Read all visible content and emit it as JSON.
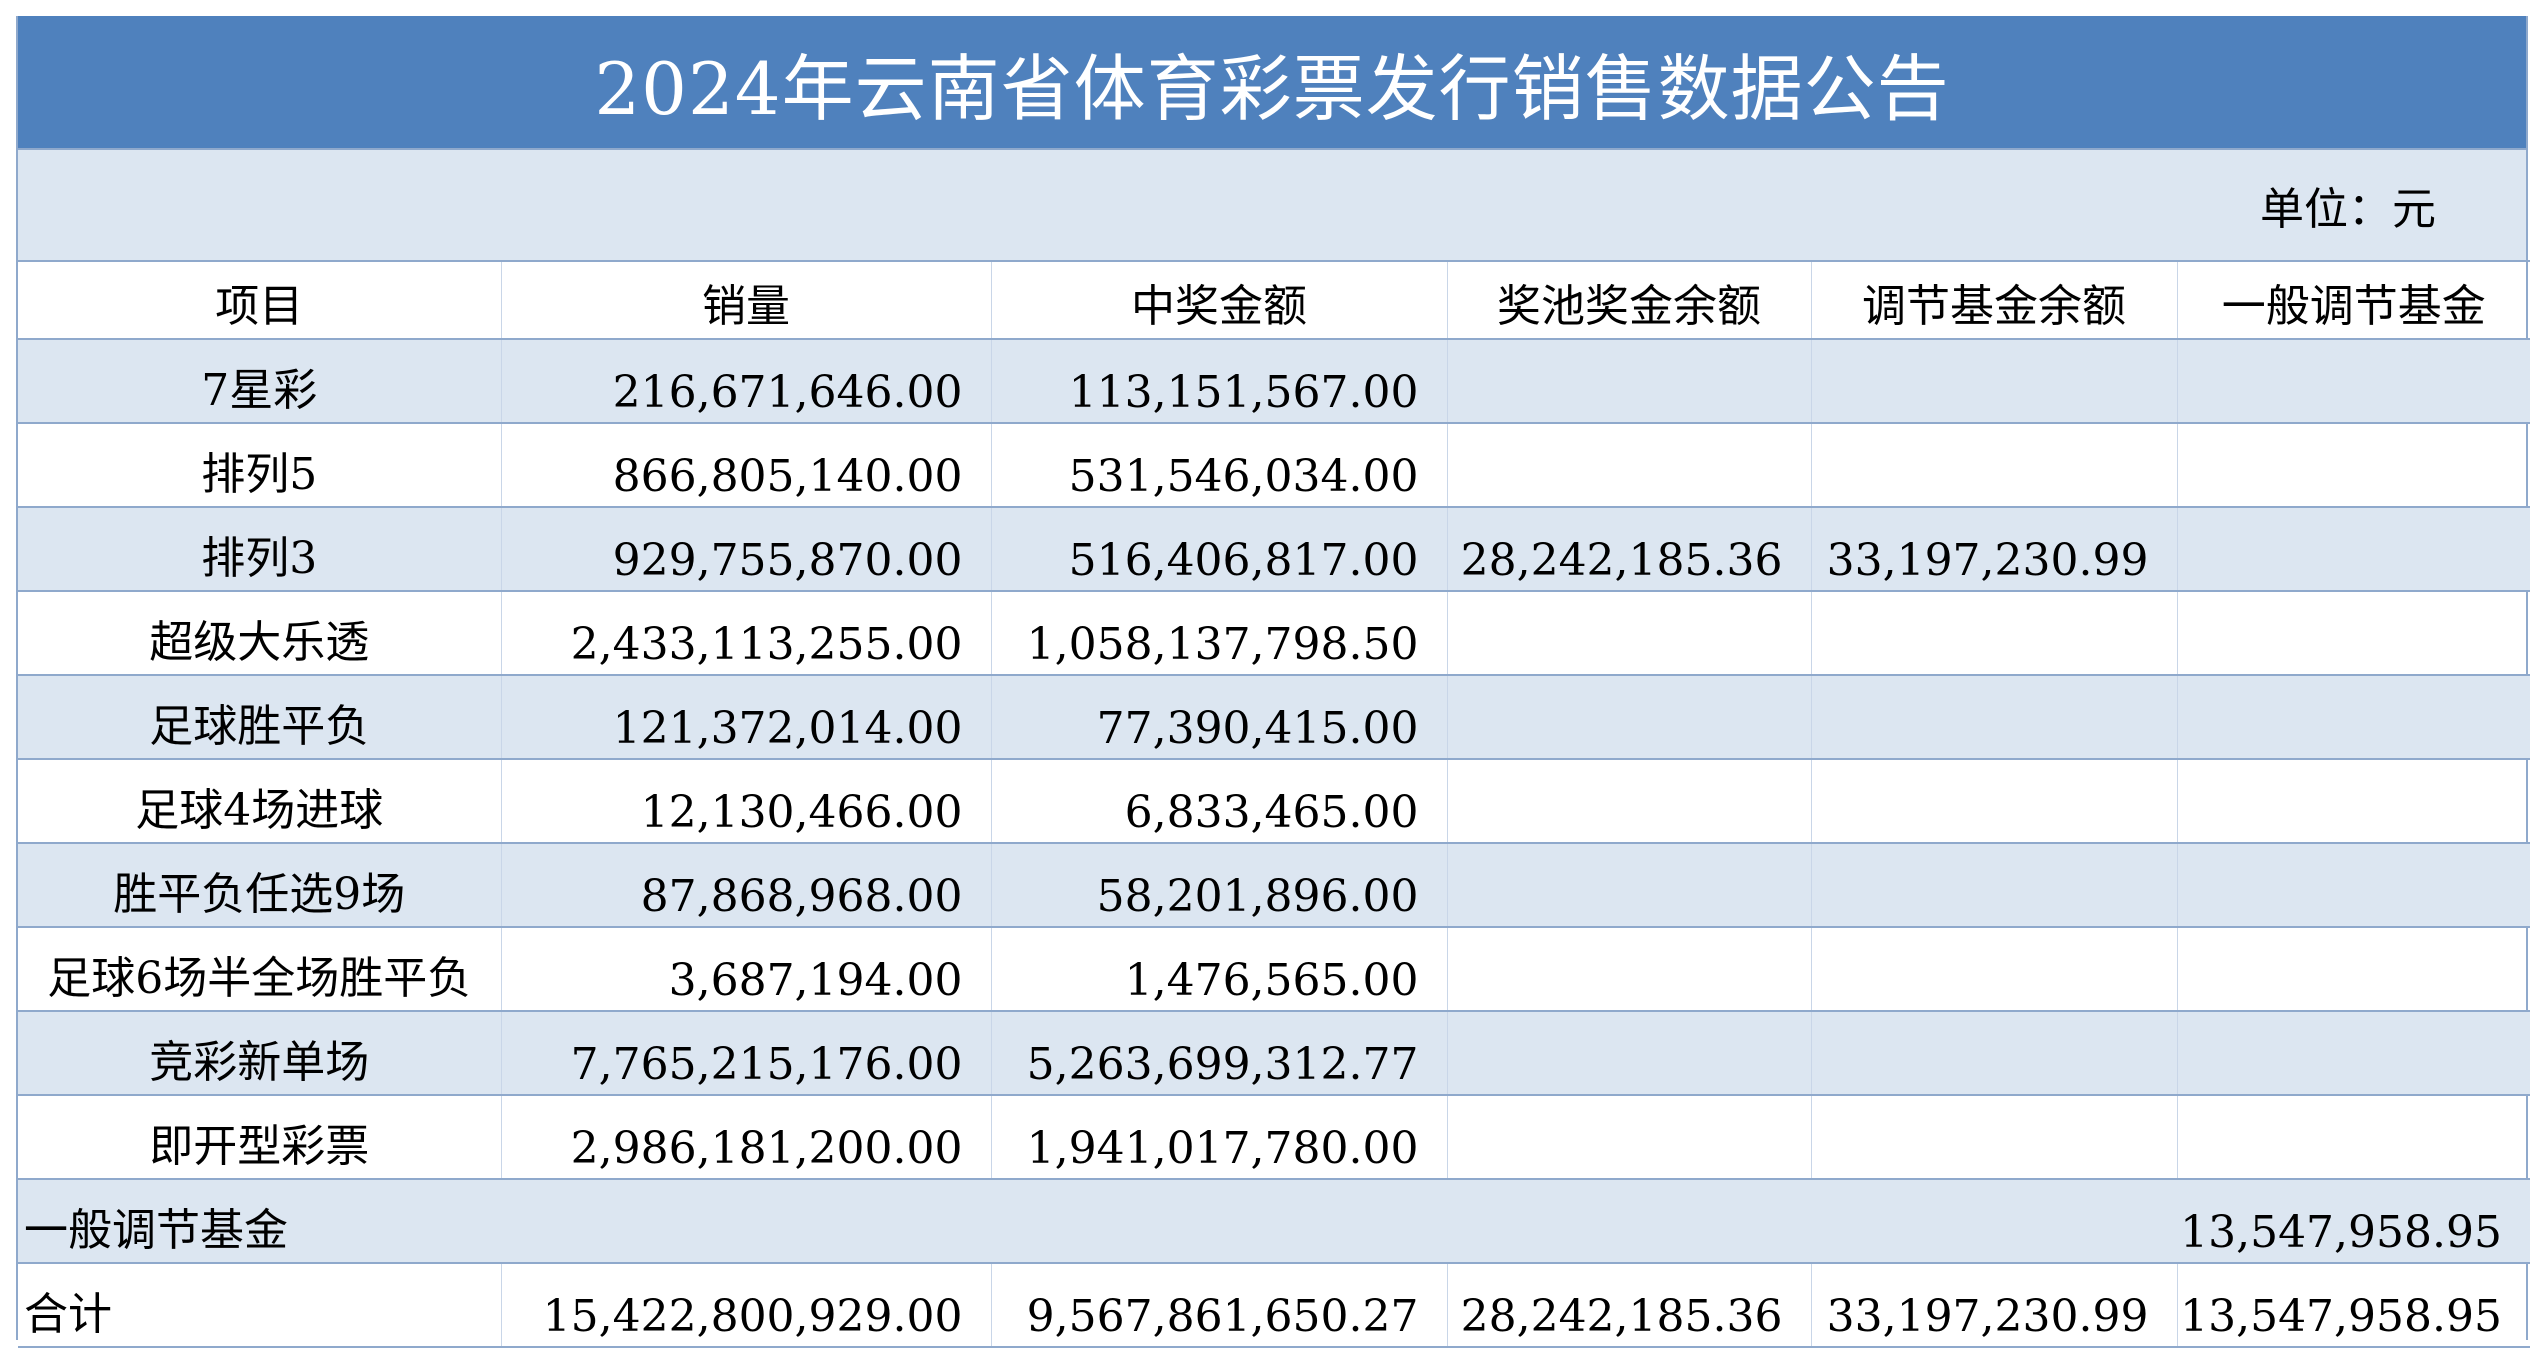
{
  "title": "2024年云南省体育彩票发行销售数据公告",
  "unit_label": "单位：元",
  "columns": [
    "项目",
    "销量",
    "中奖金额",
    "奖池奖金余额",
    "调节基金余额",
    "一般调节基金"
  ],
  "rows": [
    {
      "name": "7星彩",
      "sales": "216,671,646.00",
      "prize": "113,151,567.00",
      "pool": "",
      "adjust": "",
      "general": ""
    },
    {
      "name": "排列5",
      "sales": "866,805,140.00",
      "prize": "531,546,034.00",
      "pool": "",
      "adjust": "",
      "general": ""
    },
    {
      "name": "排列3",
      "sales": "929,755,870.00",
      "prize": "516,406,817.00",
      "pool": "28,242,185.36",
      "adjust": "33,197,230.99",
      "general": ""
    },
    {
      "name": "超级大乐透",
      "sales": "2,433,113,255.00",
      "prize": "1,058,137,798.50",
      "pool": "",
      "adjust": "",
      "general": ""
    },
    {
      "name": "足球胜平负",
      "sales": "121,372,014.00",
      "prize": "77,390,415.00",
      "pool": "",
      "adjust": "",
      "general": ""
    },
    {
      "name": "足球4场进球",
      "sales": "12,130,466.00",
      "prize": "6,833,465.00",
      "pool": "",
      "adjust": "",
      "general": ""
    },
    {
      "name": "胜平负任选9场",
      "sales": "87,868,968.00",
      "prize": "58,201,896.00",
      "pool": "",
      "adjust": "",
      "general": ""
    },
    {
      "name": "足球6场半全场胜平负",
      "sales": "3,687,194.00",
      "prize": "1,476,565.00",
      "pool": "",
      "adjust": "",
      "general": ""
    },
    {
      "name": "竞彩新单场",
      "sales": "7,765,215,176.00",
      "prize": "5,263,699,312.77",
      "pool": "",
      "adjust": "",
      "general": ""
    },
    {
      "name": "即开型彩票",
      "sales": "2,986,181,200.00",
      "prize": "1,941,017,780.00",
      "pool": "",
      "adjust": "",
      "general": ""
    }
  ],
  "general_fund_row": {
    "name": "一般调节基金",
    "general": "13,547,958.95"
  },
  "total_row": {
    "name": "合计",
    "sales": "15,422,800,929.00",
    "prize": "9,567,861,650.27",
    "pool": "28,242,185.36",
    "adjust": "33,197,230.99",
    "general": "13,547,958.95"
  }
}
